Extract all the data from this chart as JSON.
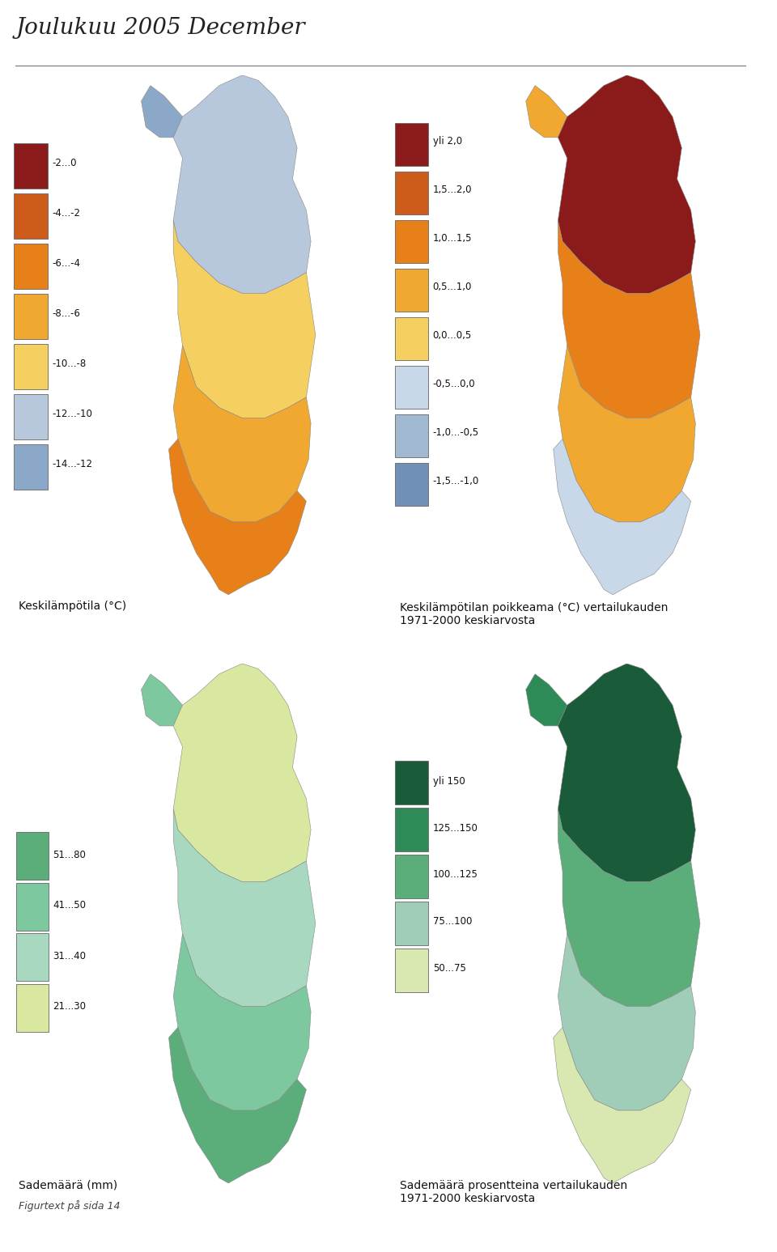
{
  "title": "Joulukuu 2005 December",
  "title_fontsize": 20,
  "title_color": "#222222",
  "background_color": "#ffffff",
  "border_color": "#DAA520",
  "map1_label": "Keskilämpötila (°C)",
  "map2_label": "Keskilämpötilan poikkeama (°C) vertailukauden\n1971-2000 keskiarvosta",
  "map3_label": "Sademäärä (mm)",
  "map4_label": "Sademäärä prosentteina vertailukauden\n1971-2000 keskiarvosta",
  "map3_sub": "Figurtext på sida 14",
  "legend1_colors": [
    "#8B1A1A",
    "#CD5C1A",
    "#E8801A",
    "#F0A830",
    "#F5D060",
    "#B8C8DC",
    "#8BA8C8"
  ],
  "legend1_labels": [
    "-2...0",
    "-4...-2",
    "-6...-4",
    "-8...-6",
    "-10...-8",
    "-12...-10",
    "-14...-12"
  ],
  "legend2_colors": [
    "#8B1A1A",
    "#CD5C1A",
    "#E8801A",
    "#F0A830",
    "#F5D060",
    "#C8D8E8",
    "#A0B8D0",
    "#7090B8"
  ],
  "legend2_labels": [
    "yli 2,0",
    "1,5...2,0",
    "1,0...1,5",
    "0,5...1,0",
    "0,0...0,5",
    "-0,5...0,0",
    "-1,0...-0,5",
    "-1,5...-1,0"
  ],
  "legend3_colors": [
    "#5BAD7A",
    "#7EC8A0",
    "#A8D8C0",
    "#D8E8A0"
  ],
  "legend3_labels": [
    "51...80",
    "41...50",
    "31...40",
    "21...30"
  ],
  "legend4_colors": [
    "#1A5C3A",
    "#2E8B57",
    "#5BAD7A",
    "#A0CDB8",
    "#D8E8B0"
  ],
  "legend4_labels": [
    "yli 150",
    "125...150",
    "100...125",
    "75...100",
    "50...75"
  ]
}
